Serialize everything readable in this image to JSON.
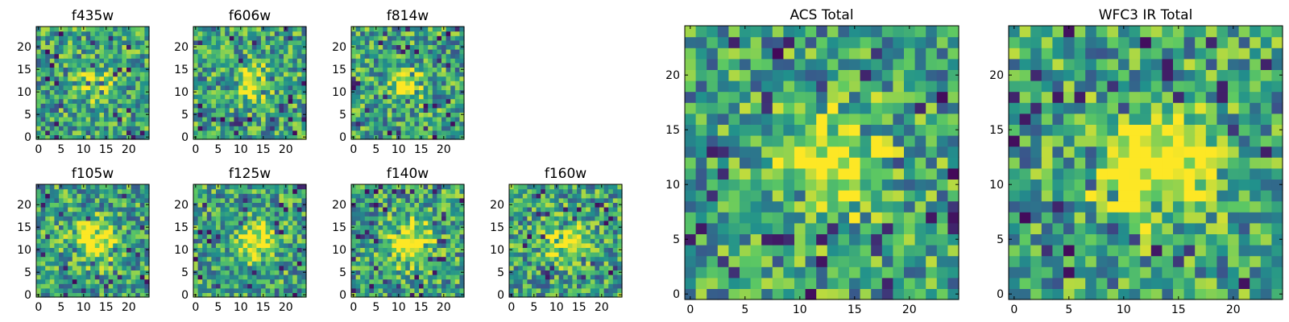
{
  "chart_data": {
    "type": "heatmap",
    "colormap": "viridis",
    "grid_size": 25,
    "colors": {
      "low": "#440154",
      "mid": "#21918c",
      "high": "#fde725"
    },
    "panels": [
      {
        "title": "f435w",
        "xticks": [
          "0",
          "5",
          "10",
          "15",
          "20"
        ],
        "yticks": [
          "0",
          "5",
          "10",
          "15",
          "20"
        ],
        "xlim": [
          0,
          24
        ],
        "ylim": [
          0,
          24
        ],
        "source": {
          "amp": 0.25,
          "sigma": 3.0
        }
      },
      {
        "title": "f606w",
        "xticks": [
          "0",
          "5",
          "10",
          "15",
          "20"
        ],
        "yticks": [
          "0",
          "5",
          "10",
          "15",
          "20"
        ],
        "xlim": [
          0,
          24
        ],
        "ylim": [
          0,
          24
        ],
        "source": {
          "amp": 0.55,
          "sigma": 2.5
        }
      },
      {
        "title": "f814w",
        "xticks": [
          "0",
          "5",
          "10",
          "15",
          "20"
        ],
        "yticks": [
          "0",
          "5",
          "10",
          "15",
          "20"
        ],
        "xlim": [
          0,
          24
        ],
        "ylim": [
          0,
          24
        ],
        "source": {
          "amp": 0.5,
          "sigma": 2.5
        }
      },
      {
        "title": "f105w",
        "xticks": [
          "0",
          "5",
          "10",
          "15",
          "20"
        ],
        "yticks": [
          "0",
          "5",
          "10",
          "15",
          "20"
        ],
        "xlim": [
          0,
          24
        ],
        "ylim": [
          0,
          24
        ],
        "source": {
          "amp": 0.55,
          "sigma": 3.0
        }
      },
      {
        "title": "f125w",
        "xticks": [
          "0",
          "5",
          "10",
          "15",
          "20"
        ],
        "yticks": [
          "0",
          "5",
          "10",
          "15",
          "20"
        ],
        "xlim": [
          0,
          24
        ],
        "ylim": [
          0,
          24
        ],
        "source": {
          "amp": 0.5,
          "sigma": 3.0
        }
      },
      {
        "title": "f140w",
        "xticks": [
          "0",
          "5",
          "10",
          "15",
          "20"
        ],
        "yticks": [
          "0",
          "5",
          "10",
          "15",
          "20"
        ],
        "xlim": [
          0,
          24
        ],
        "ylim": [
          0,
          24
        ],
        "source": {
          "amp": 0.5,
          "sigma": 3.5
        }
      },
      {
        "title": "f160w",
        "xticks": [
          "0",
          "5",
          "10",
          "15",
          "20"
        ],
        "yticks": [
          "0",
          "5",
          "10",
          "15",
          "20"
        ],
        "xlim": [
          0,
          24
        ],
        "ylim": [
          0,
          24
        ],
        "source": {
          "amp": 0.55,
          "sigma": 3.0
        }
      },
      {
        "title": "ACS Total",
        "xticks": [
          "0",
          "5",
          "10",
          "15",
          "20"
        ],
        "yticks": [
          "0",
          "5",
          "10",
          "15",
          "20"
        ],
        "xlim": [
          0,
          24
        ],
        "ylim": [
          0,
          24
        ],
        "source": {
          "amp": 0.45,
          "sigma": 3.5
        }
      },
      {
        "title": "WFC3 IR Total",
        "xticks": [
          "0",
          "5",
          "10",
          "15",
          "20"
        ],
        "yticks": [
          "0",
          "5",
          "10",
          "15",
          "20"
        ],
        "xlim": [
          0,
          24
        ],
        "ylim": [
          0,
          24
        ],
        "source": {
          "amp": 0.6,
          "sigma": 3.5
        }
      }
    ]
  }
}
